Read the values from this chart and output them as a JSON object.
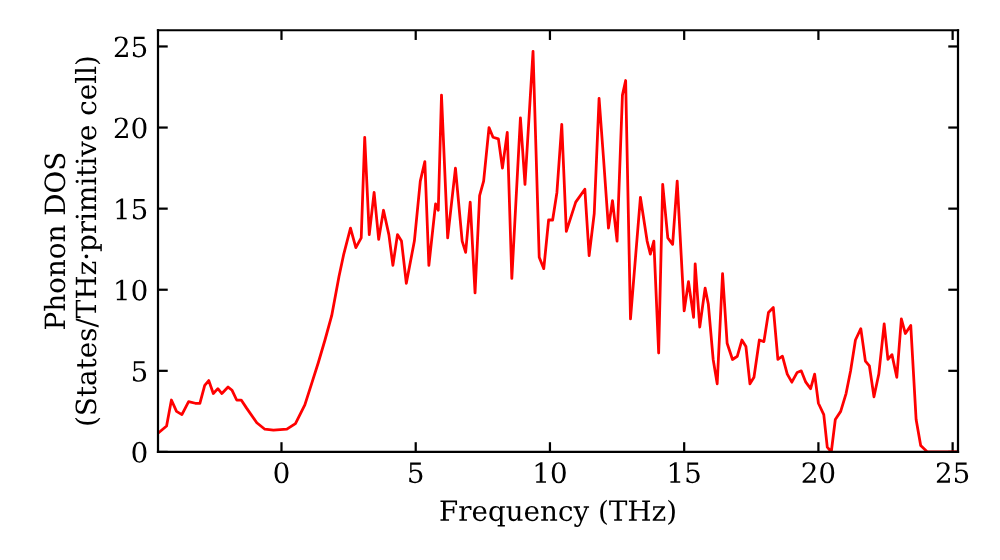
{
  "chart_data": {
    "type": "line",
    "xlabel": "Frequency (THz)",
    "ylabel": "Phonon DOS\n(States/THz·primitive cell)",
    "xlim": [
      -4.6,
      25.2
    ],
    "ylim": [
      0,
      26
    ],
    "xticks": [
      0,
      5,
      10,
      15,
      20,
      25
    ],
    "yticks": [
      0,
      5,
      10,
      15,
      20,
      25
    ],
    "grid": false,
    "legend": false,
    "marker": "none",
    "line_style": "solid",
    "series": [
      {
        "color": "#ff0000",
        "x": [
          -4.6,
          -4.28,
          -4.1,
          -3.91,
          -3.71,
          -3.46,
          -3.21,
          -3.04,
          -2.86,
          -2.71,
          -2.54,
          -2.37,
          -2.22,
          -1.99,
          -1.84,
          -1.67,
          -1.5,
          -1.3,
          -0.92,
          -0.62,
          -0.3,
          0.2,
          0.52,
          0.87,
          1.12,
          1.37,
          1.62,
          1.87,
          2.14,
          2.32,
          2.57,
          2.77,
          2.97,
          3.1,
          3.27,
          3.45,
          3.62,
          3.8,
          4.0,
          4.15,
          4.32,
          4.47,
          4.65,
          4.95,
          5.17,
          5.34,
          5.49,
          5.74,
          5.84,
          5.96,
          6.19,
          6.48,
          6.73,
          6.86,
          7.03,
          7.21,
          7.38,
          7.53,
          7.73,
          7.88,
          8.08,
          8.23,
          8.41,
          8.58,
          8.9,
          9.07,
          9.37,
          9.6,
          9.77,
          9.95,
          10.1,
          10.26,
          10.44,
          10.61,
          10.96,
          11.3,
          11.46,
          11.65,
          11.83,
          12.0,
          12.18,
          12.33,
          12.5,
          12.7,
          12.82,
          13.0,
          13.37,
          13.62,
          13.74,
          13.87,
          14.05,
          14.2,
          14.39,
          14.57,
          14.74,
          15.0,
          15.16,
          15.35,
          15.41,
          15.58,
          15.78,
          15.9,
          16.08,
          16.23,
          16.43,
          16.6,
          16.8,
          16.98,
          17.15,
          17.3,
          17.45,
          17.6,
          17.8,
          17.97,
          18.14,
          18.32,
          18.49,
          18.66,
          18.84,
          19.01,
          19.21,
          19.36,
          19.53,
          19.71,
          19.86,
          20.0,
          20.2,
          20.33,
          20.48,
          20.63,
          20.83,
          21.03,
          21.2,
          21.38,
          21.58,
          21.75,
          21.9,
          22.07,
          22.25,
          22.45,
          22.59,
          22.74,
          22.92,
          23.09,
          23.24,
          23.44,
          23.64,
          23.81,
          24.06,
          25.18
        ],
        "values": [
          1.15,
          1.6,
          3.2,
          2.5,
          2.3,
          3.1,
          3.0,
          3.0,
          4.1,
          4.4,
          3.6,
          3.9,
          3.6,
          4.0,
          3.8,
          3.2,
          3.2,
          2.7,
          1.8,
          1.4,
          1.35,
          1.4,
          1.75,
          2.9,
          4.2,
          5.5,
          6.9,
          8.4,
          10.8,
          12.2,
          13.8,
          12.6,
          13.2,
          19.4,
          13.4,
          16.0,
          13.1,
          14.9,
          13.4,
          11.5,
          13.4,
          13.0,
          10.4,
          13.0,
          16.7,
          17.9,
          11.5,
          15.3,
          14.9,
          22.0,
          13.2,
          17.5,
          13.0,
          12.3,
          15.4,
          9.8,
          15.8,
          16.7,
          20.0,
          19.4,
          19.3,
          17.5,
          19.7,
          10.7,
          20.6,
          16.5,
          24.7,
          12.0,
          11.3,
          14.3,
          14.3,
          16.0,
          20.2,
          13.6,
          15.4,
          16.2,
          12.1,
          14.7,
          21.8,
          18.0,
          13.8,
          15.5,
          13.0,
          22.0,
          22.9,
          8.2,
          15.7,
          13.0,
          12.2,
          13.0,
          6.1,
          16.5,
          13.2,
          12.8,
          16.7,
          8.7,
          10.5,
          8.3,
          11.6,
          7.7,
          10.1,
          9.1,
          5.7,
          4.2,
          11.0,
          6.7,
          5.7,
          5.9,
          6.9,
          6.5,
          4.2,
          4.6,
          6.9,
          6.8,
          8.6,
          8.9,
          5.7,
          5.9,
          4.8,
          4.3,
          4.9,
          5.0,
          4.3,
          3.9,
          4.8,
          3.0,
          2.3,
          0.3,
          0,
          2.0,
          2.5,
          3.6,
          5.0,
          6.9,
          7.6,
          5.6,
          5.3,
          3.4,
          4.8,
          7.9,
          5.7,
          6.0,
          4.6,
          8.2,
          7.3,
          7.8,
          2.0,
          0.4,
          0,
          0
        ]
      }
    ]
  }
}
